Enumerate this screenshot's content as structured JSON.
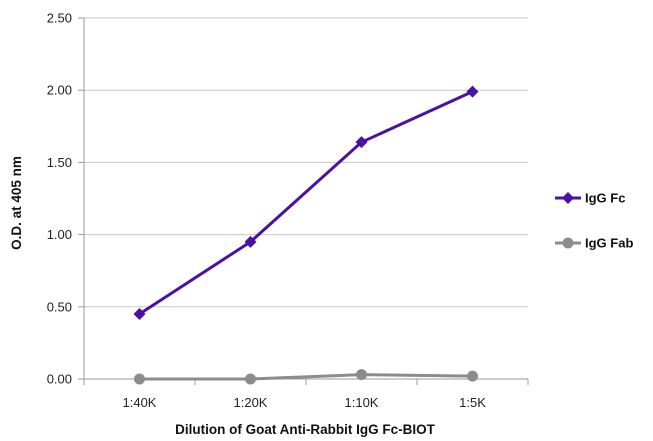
{
  "chart_data": {
    "type": "line",
    "title": "",
    "xlabel": "Dilution of Goat Anti-Rabbit IgG Fc-BIOT",
    "ylabel": "O.D. at 405 nm",
    "categories": [
      "1:40K",
      "1:20K",
      "1:10K",
      "1:5K"
    ],
    "ylim": [
      0,
      2.5
    ],
    "yticks": [
      "0.00",
      "0.50",
      "1.00",
      "1.50",
      "2.00",
      "2.50"
    ],
    "grid": "horizontal",
    "legend_position": "right",
    "series": [
      {
        "name": "IgG Fc",
        "values": [
          0.45,
          0.95,
          1.64,
          1.99
        ],
        "color": "#4b10a6",
        "marker": "diamond"
      },
      {
        "name": "IgG Fab",
        "values": [
          0.0,
          0.0,
          0.03,
          0.02
        ],
        "color": "#8c8c8c",
        "marker": "circle"
      }
    ]
  }
}
